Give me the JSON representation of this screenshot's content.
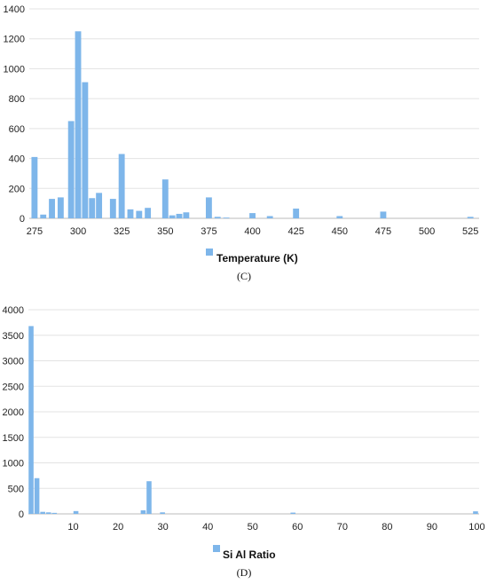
{
  "chart_data": [
    {
      "type": "bar",
      "panel_label": "(C)",
      "legend": "Temperature (K)",
      "bar_color": "#7EB6EA",
      "grid": true,
      "legend_position": "bottom",
      "xlim": [
        272,
        530
      ],
      "ylim": [
        0,
        1400
      ],
      "x_ticks": [
        275,
        300,
        325,
        350,
        375,
        400,
        425,
        450,
        475,
        500,
        525
      ],
      "y_ticks": [
        0,
        200,
        400,
        600,
        800,
        1000,
        1200,
        1400
      ],
      "bar_width": 4,
      "x": [
        275,
        280,
        285,
        290,
        296,
        300,
        304,
        308,
        312,
        320,
        325,
        330,
        335,
        340,
        350,
        354,
        358,
        362,
        375,
        380,
        385,
        400,
        410,
        425,
        450,
        475,
        525
      ],
      "values": [
        410,
        25,
        130,
        140,
        650,
        1250,
        910,
        135,
        170,
        130,
        430,
        60,
        50,
        70,
        260,
        20,
        30,
        40,
        140,
        10,
        5,
        35,
        15,
        65,
        15,
        45,
        10
      ]
    },
    {
      "type": "bar",
      "panel_label": "(D)",
      "legend": "Si Al Ratio",
      "bar_color": "#7EB6EA",
      "grid": true,
      "legend_position": "bottom",
      "xlim": [
        0,
        100.5
      ],
      "ylim": [
        0,
        4000
      ],
      "x_ticks": [
        10,
        20,
        30,
        40,
        50,
        60,
        70,
        80,
        90,
        100
      ],
      "y_ticks": [
        0,
        500,
        1000,
        1500,
        2000,
        2500,
        3000,
        3500,
        4000
      ],
      "bar_width": 1.3,
      "x": [
        0.6,
        1.9,
        3.2,
        4.5,
        5.8,
        10.6,
        25.6,
        26.9,
        29.9,
        59.0,
        99.7
      ],
      "values": [
        3680,
        700,
        40,
        30,
        20,
        55,
        70,
        640,
        30,
        25,
        50
      ]
    }
  ]
}
